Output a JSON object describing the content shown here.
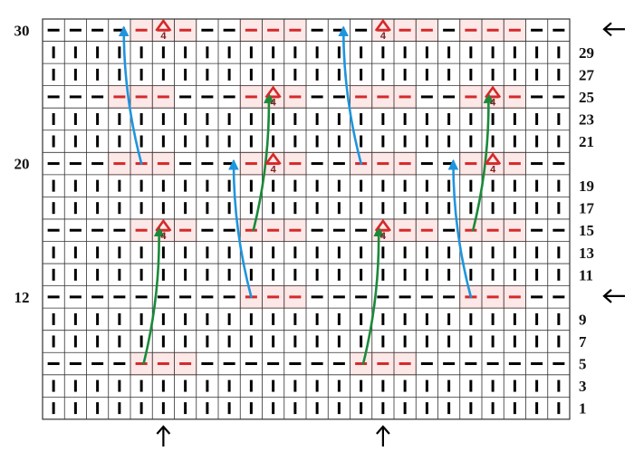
{
  "chart": {
    "columns": 24,
    "rows": 18,
    "colors": {
      "grid_line": "#333333",
      "knit_mark": "#000000",
      "purl_mark": "#000000",
      "highlight_fill": "#fde8e8",
      "highlight_border": "#f3aaaa",
      "highlight_mark": "#d42a2a",
      "plait_caret": "#d42a2a",
      "plait_number": "#7a2020",
      "arrow_blue": "#1f95dd",
      "arrow_green": "#1a8a3a",
      "pointer": "#000000"
    },
    "row_types": [
      "knit",
      "knit",
      "purl",
      "knit",
      "knit",
      "purl",
      "knit",
      "knit",
      "purl",
      "knit",
      "knit",
      "purl",
      "knit",
      "knit",
      "purl",
      "knit",
      "knit",
      "purl"
    ],
    "highlights": [
      {
        "row": 17,
        "cols": [
          4,
          5,
          6
        ],
        "caret_col": 5
      },
      {
        "row": 17,
        "cols": [
          9,
          10,
          11
        ]
      },
      {
        "row": 17,
        "cols": [
          15,
          16,
          17
        ],
        "caret_col": 15
      },
      {
        "row": 17,
        "cols": [
          19,
          20,
          21
        ]
      },
      {
        "row": 14,
        "cols": [
          3,
          4,
          5
        ]
      },
      {
        "row": 14,
        "cols": [
          9,
          10,
          11
        ],
        "caret_col": 10
      },
      {
        "row": 14,
        "cols": [
          14,
          15,
          16
        ]
      },
      {
        "row": 14,
        "cols": [
          19,
          20,
          21
        ],
        "caret_col": 20
      },
      {
        "row": 11,
        "cols": [
          3,
          4,
          5
        ]
      },
      {
        "row": 11,
        "cols": [
          9,
          10,
          11
        ],
        "caret_col": 10
      },
      {
        "row": 11,
        "cols": [
          14,
          15,
          16
        ]
      },
      {
        "row": 11,
        "cols": [
          19,
          20,
          21
        ],
        "caret_col": 20
      },
      {
        "row": 8,
        "cols": [
          4,
          5,
          6
        ],
        "caret_col": 5
      },
      {
        "row": 8,
        "cols": [
          9,
          10,
          11
        ]
      },
      {
        "row": 8,
        "cols": [
          15,
          16,
          17
        ],
        "caret_col": 15
      },
      {
        "row": 8,
        "cols": [
          19,
          20,
          21
        ]
      },
      {
        "row": 5,
        "cols": [
          9,
          10,
          11
        ]
      },
      {
        "row": 5,
        "cols": [
          19,
          20,
          21
        ]
      },
      {
        "row": 2,
        "cols": [
          4,
          5,
          6
        ]
      },
      {
        "row": 2,
        "cols": [
          14,
          15,
          16
        ]
      }
    ],
    "plait_label": "4",
    "arrows": [
      {
        "color": "blue",
        "from": [
          4.5,
          11.5
        ],
        "to": [
          3.7,
          17.6
        ]
      },
      {
        "color": "blue",
        "from": [
          14.5,
          11.5
        ],
        "to": [
          13.7,
          17.6
        ]
      },
      {
        "color": "blue",
        "from": [
          9.5,
          5.5
        ],
        "to": [
          8.7,
          11.6
        ]
      },
      {
        "color": "blue",
        "from": [
          19.5,
          5.5
        ],
        "to": [
          18.7,
          11.6
        ]
      },
      {
        "color": "green",
        "from": [
          4.6,
          2.5
        ],
        "to": [
          5.3,
          8.6
        ]
      },
      {
        "color": "green",
        "from": [
          14.6,
          2.5
        ],
        "to": [
          15.3,
          8.6
        ]
      },
      {
        "color": "green",
        "from": [
          9.6,
          8.5
        ],
        "to": [
          10.3,
          14.6
        ]
      },
      {
        "color": "green",
        "from": [
          19.6,
          8.5
        ],
        "to": [
          20.3,
          14.6
        ]
      }
    ],
    "right_row_labels": [
      {
        "text": "29",
        "row": 16
      },
      {
        "text": "27",
        "row": 15
      },
      {
        "text": "25",
        "row": 14
      },
      {
        "text": "23",
        "row": 13
      },
      {
        "text": "21",
        "row": 12
      },
      {
        "text": "19",
        "row": 10
      },
      {
        "text": "17",
        "row": 9
      },
      {
        "text": "15",
        "row": 8
      },
      {
        "text": "13",
        "row": 7
      },
      {
        "text": "11",
        "row": 6
      },
      {
        "text": "9",
        "row": 4
      },
      {
        "text": "7",
        "row": 3
      },
      {
        "text": "5",
        "row": 2
      },
      {
        "text": "3",
        "row": 1
      },
      {
        "text": "1",
        "row": 0
      }
    ],
    "left_row_labels": [
      {
        "text": "30",
        "row": 17
      },
      {
        "text": "20",
        "row": 11
      },
      {
        "text": "12",
        "row": 5
      }
    ],
    "side_pointers": [
      {
        "row": 17,
        "direction": "left"
      },
      {
        "row": 5,
        "direction": "left"
      }
    ],
    "bottom_pointers": [
      {
        "col": 5,
        "direction": "up"
      },
      {
        "col": 15,
        "direction": "up"
      }
    ]
  }
}
